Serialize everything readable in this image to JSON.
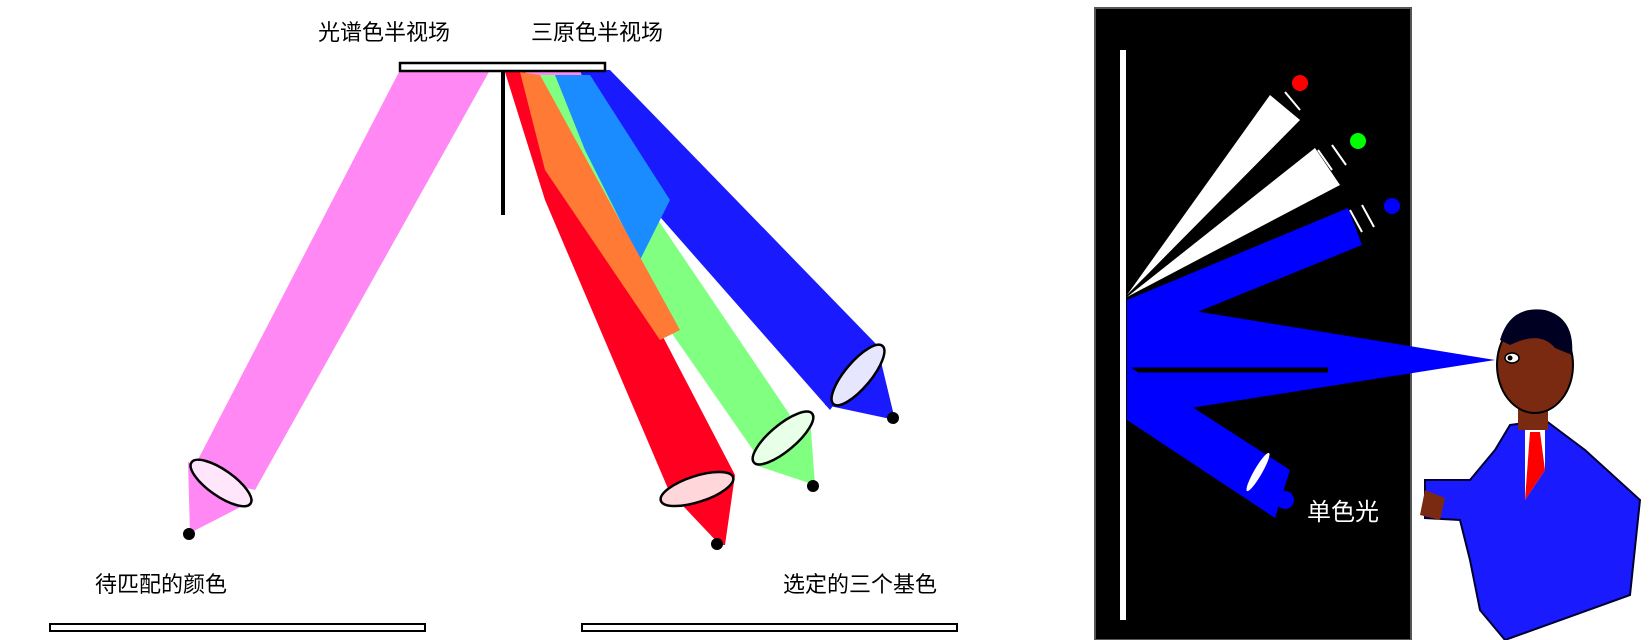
{
  "left_diagram": {
    "labels": {
      "spectral_half_field": "光谱色半视场",
      "primary_half_field": "三原色半视场",
      "color_to_match": "待匹配的颜色",
      "selected_primaries": "选定的三个基色"
    },
    "colors": {
      "test_beam": "#ff88f5",
      "red_beam": "#ff0020",
      "green_beam": "#80ff80",
      "blue_beam": "#1a1aff",
      "red_green_overlap": "#ff7a35",
      "green_blue_overlap": "#1a8cff",
      "lens_fill": "#ffe6fb"
    }
  },
  "right_diagram": {
    "label": "单色光",
    "colors": {
      "background": "#000000",
      "screen": "#ffffff",
      "beam": "#0000ff",
      "red_lamp": "#ff0000",
      "green_lamp": "#00ff00",
      "blue_lamp": "#0000ff",
      "suit": "#1a1aff",
      "skin": "#7a2a10",
      "tie": "#ff0000"
    }
  }
}
